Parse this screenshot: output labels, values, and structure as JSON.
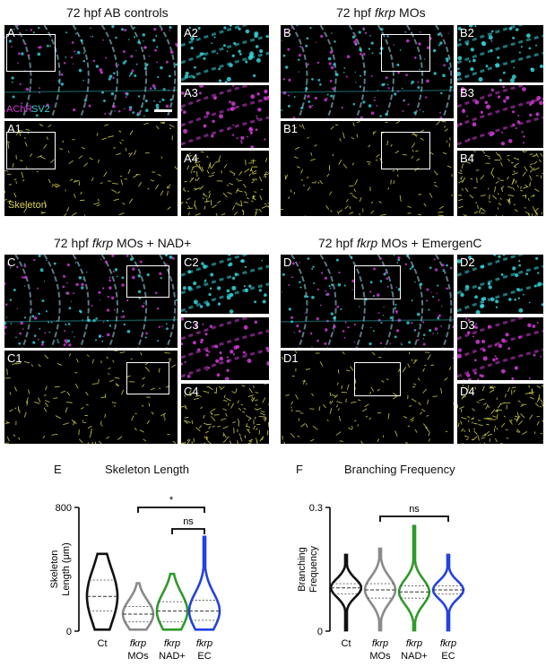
{
  "titles": {
    "row1_left_prefix": "72 hpf AB controls",
    "row1_right_prefix": "72 hpf ",
    "row1_right_italic": "fkrp",
    "row1_right_suffix": " MOs",
    "row2_left_prefix": "72 hpf ",
    "row2_left_italic": "fkrp",
    "row2_left_suffix": " MOs + NAD+",
    "row2_right_prefix": "72 hpf ",
    "row2_right_italic": "fkrp",
    "row2_right_suffix": " MOs + EmergenC"
  },
  "panels": {
    "A": "A",
    "A1": "A1",
    "A2": "A2",
    "A3": "A3",
    "A4": "A4",
    "B": "B",
    "B1": "B1",
    "B2": "B2",
    "B3": "B3",
    "B4": "B4",
    "C": "C",
    "C1": "C1",
    "C2": "C2",
    "C3": "C3",
    "C4": "C4",
    "D": "D",
    "D1": "D1",
    "D2": "D2",
    "D3": "D3",
    "D4": "D4"
  },
  "stain_labels": {
    "achr": "AChR",
    "sv2": "SV2",
    "skeleton": "Skeleton"
  },
  "colors": {
    "cyan": "#34d6dc",
    "magenta": "#d23bd8",
    "yellow": "#d8d44a",
    "black_violin": "#111111",
    "grey_violin": "#8a8a8a",
    "green_violin": "#2f9a2a",
    "blue_violin": "#2442e0"
  },
  "chart_e": {
    "letter": "E",
    "title": "Skeleton Length",
    "ylabel_line1": "Skeleton",
    "ylabel_line2": "Length (μm)",
    "ticks": [
      "800",
      "0"
    ],
    "sig_top": "*",
    "sig_bottom": "ns",
    "cat_lines": [
      [
        "Ct",
        ""
      ],
      [
        "fkrp",
        "MOs"
      ],
      [
        "fkrp",
        "NAD+"
      ],
      [
        "fkrp",
        "EC"
      ]
    ]
  },
  "chart_f": {
    "letter": "F",
    "title": "Branching Frequency",
    "ylabel_line1": "Branching",
    "ylabel_line2": "Frequency",
    "ticks": [
      "0.3",
      "0"
    ],
    "sig": "ns",
    "cat_lines": [
      [
        "Ct",
        ""
      ],
      [
        "fkrp",
        "MOs"
      ],
      [
        "fkrp",
        "NAD+"
      ],
      [
        "fkrp",
        "EC"
      ]
    ]
  },
  "chart_data": [
    {
      "type": "violin",
      "title": "Skeleton Length",
      "ylabel": "Skeleton Length (μm)",
      "ylim": [
        0,
        800
      ],
      "categories": [
        "Ct",
        "fkrp MOs",
        "fkrp NAD+",
        "fkrp EC"
      ],
      "series": [
        {
          "name": "Ct",
          "min": 10,
          "max": 500,
          "median": 225,
          "q1": 130,
          "q3": 330
        },
        {
          "name": "fkrp MOs",
          "min": 10,
          "max": 310,
          "median": 110,
          "q1": 60,
          "q3": 160
        },
        {
          "name": "fkrp NAD+",
          "min": 10,
          "max": 370,
          "median": 130,
          "q1": 60,
          "q3": 190
        },
        {
          "name": "fkrp EC",
          "min": 10,
          "max": 610,
          "median": 130,
          "q1": 70,
          "q3": 200
        }
      ],
      "annotations": [
        {
          "text": "*",
          "between": [
            "fkrp MOs",
            "fkrp EC"
          ]
        },
        {
          "text": "ns",
          "between": [
            "fkrp NAD+",
            "fkrp EC"
          ]
        }
      ]
    },
    {
      "type": "violin",
      "title": "Branching Frequency",
      "ylabel": "Branching Frequency",
      "ylim": [
        0,
        0.3
      ],
      "categories": [
        "Ct",
        "fkrp MOs",
        "fkrp NAD+",
        "fkrp EC"
      ],
      "series": [
        {
          "name": "Ct",
          "min": 0.002,
          "max": 0.185,
          "median": 0.105,
          "q1": 0.09,
          "q3": 0.115
        },
        {
          "name": "fkrp MOs",
          "min": 0.002,
          "max": 0.2,
          "median": 0.1,
          "q1": 0.08,
          "q3": 0.115
        },
        {
          "name": "fkrp NAD+",
          "min": 0.002,
          "max": 0.255,
          "median": 0.095,
          "q1": 0.08,
          "q3": 0.11
        },
        {
          "name": "fkrp EC",
          "min": 0.002,
          "max": 0.185,
          "median": 0.1,
          "q1": 0.09,
          "q3": 0.11
        }
      ],
      "annotations": [
        {
          "text": "ns",
          "between": [
            "fkrp MOs",
            "fkrp EC"
          ]
        }
      ]
    }
  ]
}
